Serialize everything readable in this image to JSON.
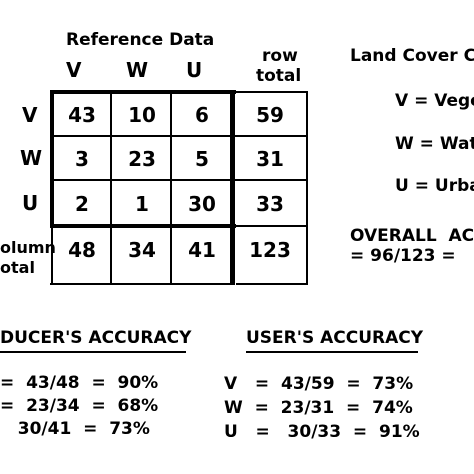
{
  "matrix": {
    "reference_label": "Reference Data",
    "col_headers": [
      "V",
      "W",
      "U"
    ],
    "row_total_label_1": "row",
    "row_total_label_2": "total",
    "row_headers": [
      "V",
      "W",
      "U"
    ],
    "column_total_label_1": "olumn",
    "column_total_label_2": "otal",
    "rows": [
      [
        "43",
        "10",
        "6",
        "59"
      ],
      [
        "3",
        "23",
        "5",
        "31"
      ],
      [
        "2",
        "1",
        "30",
        "33"
      ]
    ],
    "column_totals": [
      "48",
      "34",
      "41",
      "123"
    ]
  },
  "legend": {
    "title": "Land Cover C",
    "items": [
      "V = Vege",
      "W = Wat",
      "U = Urba"
    ]
  },
  "overall": {
    "line1": "OVERALL  AC",
    "line2": "= 96/123 ="
  },
  "producers": {
    "title": "DUCER'S ACCURACY",
    "lines": [
      "=  43/48  =  90%",
      "=  23/34  =  68%",
      "   30/41  =  73%"
    ]
  },
  "users": {
    "title": "USER'S ACCURACY",
    "lines": [
      "V   =  43/59  =  73%",
      "W  =  23/31  =  74%",
      "U   =   30/33  =  91%"
    ]
  }
}
